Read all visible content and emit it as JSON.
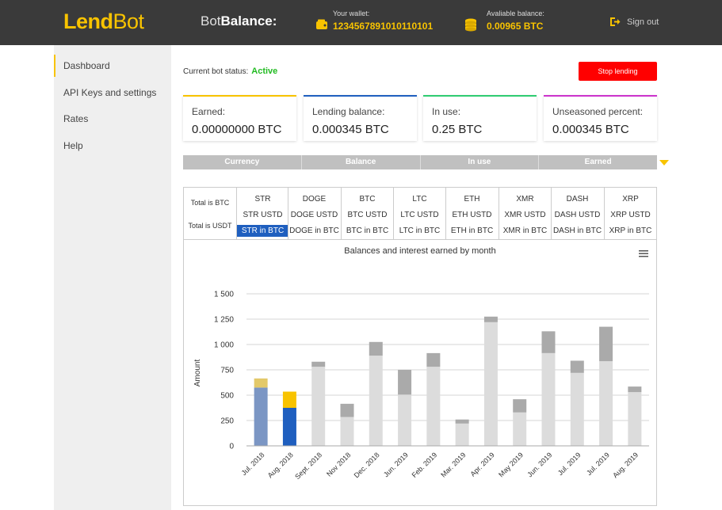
{
  "header": {
    "logo_bold": "Lend",
    "logo_light": "Bot",
    "title_light": "Bot",
    "title_bold": "Balance:",
    "wallet_label": "Your wallet:",
    "wallet_value": "1234567891010110101",
    "available_label": "Avaliable balance:",
    "available_value": "0.00965 BTC",
    "sign_out": "Sign out",
    "accent_color": "#f8c300",
    "icons": [
      "wallet-icon",
      "coins-icon",
      "sign-out-icon"
    ]
  },
  "sidebar": {
    "items": [
      {
        "label": "Dashboard",
        "active": true
      },
      {
        "label": "API Keys and settings",
        "active": false
      },
      {
        "label": "Rates",
        "active": false
      },
      {
        "label": "Help",
        "active": false
      }
    ]
  },
  "status": {
    "label": "Current bot status:",
    "value": "Active",
    "stop_button": "Stop lending"
  },
  "cards": [
    {
      "title": "Earned:",
      "value": "0.00000000 BTC",
      "color": "#f8c300"
    },
    {
      "title": "Lending balance:",
      "value": "0.000345 BTC",
      "color": "#1f5fbf"
    },
    {
      "title": "In use:",
      "value": "0.25 BTC",
      "color": "#2ecc71"
    },
    {
      "title": "Unseasoned percent:",
      "value": "0.000345 BTC",
      "color": "#cc33cc"
    }
  ],
  "columns": [
    "Currency",
    "Balance",
    "In use",
    "Earned"
  ],
  "grid": {
    "row_labels": [
      "Total is BTC",
      "Total is USDT"
    ],
    "currencies": [
      {
        "name": "STR",
        "usd": "STR USTD",
        "btc": "STR in BTC",
        "selected": true
      },
      {
        "name": "DOGE",
        "usd": "DOGE USTD",
        "btc": "DOGE in BTC",
        "selected": false
      },
      {
        "name": "BTC",
        "usd": "BTC USTD",
        "btc": "BTC in BTC",
        "selected": false
      },
      {
        "name": "LTC",
        "usd": "LTC USTD",
        "btc": "LTC in BTC",
        "selected": false
      },
      {
        "name": "ETH",
        "usd": "ETH USTD",
        "btc": "ETH in BTC",
        "selected": false
      },
      {
        "name": "XMR",
        "usd": "XMR USTD",
        "btc": "XMR in BTC",
        "selected": false
      },
      {
        "name": "DASH",
        "usd": "DASH USTD",
        "btc": "DASH in BTC",
        "selected": false
      },
      {
        "name": "XRP",
        "usd": "XRP USTD",
        "btc": "XRP in BTC",
        "selected": false
      }
    ]
  },
  "chart_data": {
    "type": "bar",
    "stacked": true,
    "title": "Balances and interest earned by month",
    "ylabel": "Amount",
    "xlabel": "",
    "ylim": [
      0,
      1500
    ],
    "yticks": [
      "0",
      "250",
      "500",
      "750",
      "1 000",
      "1 250",
      "1 500"
    ],
    "ytick_values": [
      0,
      250,
      500,
      750,
      1000,
      1250,
      1500
    ],
    "categories": [
      "Jul. 2018",
      "Aug. 2018",
      "Sept. 2018",
      "Nov 2018",
      "Dec. 2018",
      "Jun. 2019",
      "Feb. 2019",
      "Mar. 2019",
      "Apr. 2019",
      "May 2019",
      "Jun. 2019",
      "Jul. 2019",
      "Jul. 2019",
      "Aug. 2019"
    ],
    "series": [
      {
        "values": [
          575,
          375,
          780,
          285,
          890,
          505,
          780,
          220,
          1220,
          330,
          915,
          720,
          835,
          530
        ]
      },
      {
        "values": [
          90,
          160,
          50,
          130,
          135,
          245,
          135,
          40,
          55,
          130,
          215,
          120,
          340,
          55
        ]
      }
    ],
    "bar_colors": [
      [
        "#7b96c4",
        "#e3c96a"
      ],
      [
        "#1f5fbf",
        "#f8c300"
      ],
      [
        "#dcdcdc",
        "#aaaaaa"
      ],
      [
        "#dcdcdc",
        "#aaaaaa"
      ],
      [
        "#dcdcdc",
        "#aaaaaa"
      ],
      [
        "#dcdcdc",
        "#aaaaaa"
      ],
      [
        "#dcdcdc",
        "#aaaaaa"
      ],
      [
        "#dcdcdc",
        "#aaaaaa"
      ],
      [
        "#dcdcdc",
        "#aaaaaa"
      ],
      [
        "#dcdcdc",
        "#aaaaaa"
      ],
      [
        "#dcdcdc",
        "#aaaaaa"
      ],
      [
        "#dcdcdc",
        "#aaaaaa"
      ],
      [
        "#dcdcdc",
        "#aaaaaa"
      ],
      [
        "#dcdcdc",
        "#aaaaaa"
      ]
    ],
    "grid": true,
    "legend": "none",
    "menu_icon": "burger-menu-icon"
  }
}
